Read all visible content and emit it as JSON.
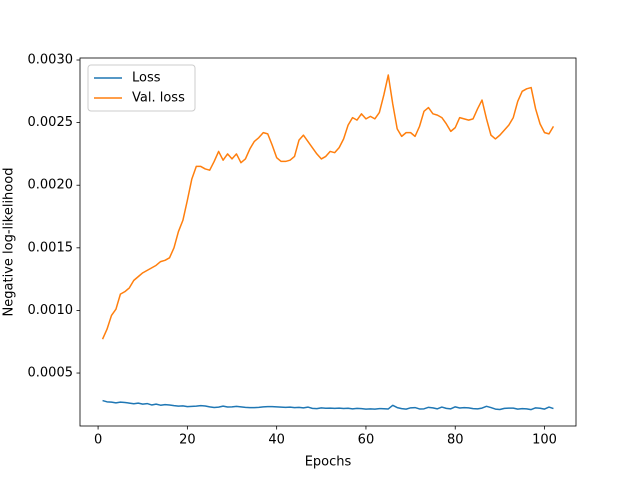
{
  "chart_data": {
    "type": "line",
    "xlabel": "Epochs",
    "ylabel": "Negative log-likelihood",
    "legend": "upper left",
    "grid": false,
    "xlim": [
      -4.05,
      107.05
    ],
    "ylim": [
      7.7e-05,
      0.003016
    ],
    "xticks": [
      0,
      20,
      40,
      60,
      80,
      100
    ],
    "yticks": [
      0.0005,
      {
        "value": 0.001,
        "label": "0.0010"
      },
      0.0015,
      {
        "value": 0.002,
        "label": "0.0020"
      },
      0.0025,
      {
        "value": 0.003,
        "label": "0.0030"
      }
    ],
    "x": [
      1,
      2,
      3,
      4,
      5,
      6,
      7,
      8,
      9,
      10,
      11,
      12,
      13,
      14,
      15,
      16,
      17,
      18,
      19,
      20,
      21,
      22,
      23,
      24,
      25,
      26,
      27,
      28,
      29,
      30,
      31,
      32,
      33,
      34,
      35,
      36,
      37,
      38,
      39,
      40,
      41,
      42,
      43,
      44,
      45,
      46,
      47,
      48,
      49,
      50,
      51,
      52,
      53,
      54,
      55,
      56,
      57,
      58,
      59,
      60,
      61,
      62,
      63,
      64,
      65,
      66,
      67,
      68,
      69,
      70,
      71,
      72,
      73,
      74,
      75,
      76,
      77,
      78,
      79,
      80,
      81,
      82,
      83,
      84,
      85,
      86,
      87,
      88,
      89,
      90,
      91,
      92,
      93,
      94,
      95,
      96,
      97,
      98,
      99,
      100,
      101,
      102
    ],
    "series": [
      {
        "name": "Loss",
        "color": "#1f77b4",
        "values": [
          0.00028,
          0.00027,
          0.000268,
          0.000262,
          0.000268,
          0.000265,
          0.00026,
          0.000255,
          0.00026,
          0.000252,
          0.000256,
          0.000245,
          0.000252,
          0.000243,
          0.000248,
          0.000245,
          0.00024,
          0.000236,
          0.000238,
          0.000232,
          0.000234,
          0.000236,
          0.00024,
          0.000237,
          0.00023,
          0.000225,
          0.000228,
          0.000236,
          0.000229,
          0.00023,
          0.000234,
          0.00023,
          0.000226,
          0.000224,
          0.000224,
          0.000226,
          0.00023,
          0.000232,
          0.000232,
          0.00023,
          0.000228,
          0.000226,
          0.000228,
          0.000224,
          0.000226,
          0.000222,
          0.000228,
          0.000218,
          0.000216,
          0.000222,
          0.000219,
          0.00022,
          0.000218,
          0.00022,
          0.000217,
          0.000219,
          0.000214,
          0.000218,
          0.000216,
          0.000212,
          0.000214,
          0.000212,
          0.000216,
          0.000215,
          0.000213,
          0.000242,
          0.000224,
          0.000216,
          0.000212,
          0.000222,
          0.000224,
          0.000213,
          0.000214,
          0.000226,
          0.000222,
          0.000214,
          0.000228,
          0.000218,
          0.000214,
          0.00023,
          0.000221,
          0.000224,
          0.000222,
          0.000216,
          0.000214,
          0.00022,
          0.000234,
          0.000224,
          0.000212,
          0.000209,
          0.000218,
          0.00022,
          0.00022,
          0.000212,
          0.000216,
          0.000214,
          0.000208,
          0.000222,
          0.000219,
          0.000212,
          0.000228,
          0.000216
        ]
      },
      {
        "name": "Val. loss",
        "color": "#ff7f0e",
        "values": [
          0.00077,
          0.00085,
          0.00096,
          0.00101,
          0.00113,
          0.00115,
          0.00118,
          0.00124,
          0.00127,
          0.0013,
          0.00132,
          0.00134,
          0.00136,
          0.00139,
          0.0014,
          0.00142,
          0.0015,
          0.00163,
          0.00172,
          0.00188,
          0.00205,
          0.00215,
          0.00215,
          0.00213,
          0.00212,
          0.00219,
          0.00227,
          0.0022,
          0.00225,
          0.00221,
          0.00225,
          0.00218,
          0.00221,
          0.00229,
          0.00235,
          0.00238,
          0.00242,
          0.00241,
          0.00232,
          0.00222,
          0.00219,
          0.00219,
          0.0022,
          0.00223,
          0.00236,
          0.0024,
          0.00235,
          0.0023,
          0.00225,
          0.00221,
          0.00223,
          0.00227,
          0.00226,
          0.0023,
          0.00237,
          0.00248,
          0.00254,
          0.00252,
          0.00257,
          0.00253,
          0.00255,
          0.00253,
          0.00258,
          0.00272,
          0.00288,
          0.00265,
          0.00245,
          0.00239,
          0.00242,
          0.00242,
          0.00239,
          0.00247,
          0.00259,
          0.00262,
          0.00257,
          0.00256,
          0.00254,
          0.00249,
          0.00243,
          0.00246,
          0.00254,
          0.00253,
          0.00252,
          0.00253,
          0.00261,
          0.00268,
          0.00253,
          0.0024,
          0.00237,
          0.0024,
          0.00244,
          0.00248,
          0.00254,
          0.00267,
          0.00275,
          0.00277,
          0.00278,
          0.00261,
          0.00249,
          0.00242,
          0.00241,
          0.00247
        ]
      }
    ]
  }
}
